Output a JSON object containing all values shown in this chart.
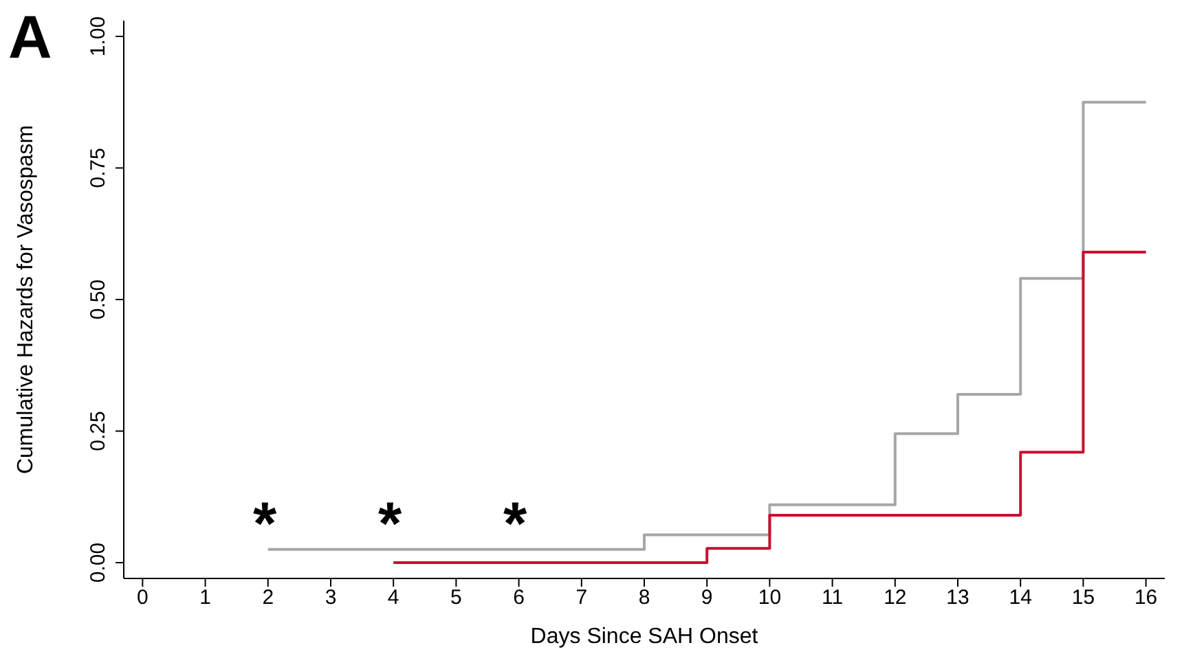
{
  "chart_data": {
    "type": "step",
    "xlabel": "Days Since SAH Onset",
    "ylabel": "Cumulative Hazards for Vasospasm",
    "xlim": [
      -0.3,
      16.3
    ],
    "xticks": [
      0,
      1,
      2,
      3,
      4,
      5,
      6,
      7,
      8,
      9,
      10,
      11,
      12,
      13,
      14,
      15,
      16
    ],
    "ylim": [
      -0.03,
      1.03
    ],
    "yticks": [
      {
        "value": 0,
        "label": "0.00"
      },
      {
        "value": 0.25,
        "label": "0.25"
      },
      {
        "value": 0.5,
        "label": "0.50"
      },
      {
        "value": 0.75,
        "label": "0.75"
      },
      {
        "value": 1,
        "label": "1.00"
      }
    ],
    "grid": false,
    "legend": false,
    "marker": "none",
    "line_style": "solid",
    "series": [
      {
        "color": "#a6a6a6",
        "x": [
          2,
          8,
          10,
          12,
          13,
          14,
          15,
          16
        ],
        "values": [
          0.025,
          0.053,
          0.11,
          0.245,
          0.32,
          0.54,
          0.875,
          0.875
        ]
      },
      {
        "color": "#c8102e",
        "x": [
          4,
          9,
          10,
          14,
          15,
          16
        ],
        "values": [
          0,
          0.027,
          0.09,
          0.21,
          0.59,
          0.59
        ]
      }
    ],
    "annotations": [
      "A",
      "*",
      "*",
      "*"
    ]
  }
}
